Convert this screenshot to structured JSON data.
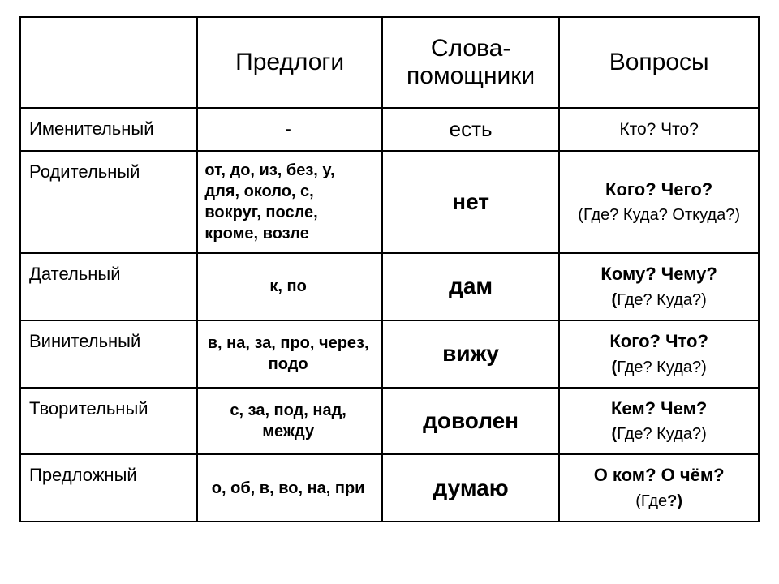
{
  "table": {
    "headers": [
      "",
      "Предлоги",
      "Слова-помощники",
      "Вопросы"
    ],
    "col_widths_pct": [
      24,
      25,
      24,
      27
    ],
    "border_color": "#000000",
    "background_color": "#ffffff",
    "text_color": "#000000",
    "header_fontsize": 30,
    "case_fontsize": 22,
    "prep_fontsize": 20,
    "helper_fontsize": 28,
    "quest_fontsize": 21,
    "rows": [
      {
        "case_name": "Именительный",
        "prepositions": "-",
        "helper": "есть",
        "questions_main": "Кто? Что?",
        "questions_sub": ""
      },
      {
        "case_name": "Родительный",
        "prepositions": "от, до, из, без, у, для, около, с, вокруг, после, кроме, возле",
        "helper": "нет",
        "questions_main": "Кого? Чего?",
        "questions_sub": "(Где? Куда? Откуда?)"
      },
      {
        "case_name": "Дательный",
        "prepositions": "к, по",
        "helper": "дам",
        "questions_main": "Кому? Чему?",
        "questions_sub_inner": "Где? Куда?)"
      },
      {
        "case_name": "Винительный",
        "prepositions": "в, на, за, про, через, подо",
        "helper": "вижу",
        "questions_main": "Кого? Что?",
        "questions_sub_inner": "Где? Куда?)"
      },
      {
        "case_name": "Творительный",
        "prepositions": "с, за, под, над, между",
        "helper": "доволен",
        "questions_main": "Кем? Чем?",
        "questions_sub_inner": "Где? Куда?)"
      },
      {
        "case_name": "Предложный",
        "prepositions": "о, об, в, во, на, при",
        "helper": "думаю",
        "questions_main": "О ком? О чём?",
        "questions_sub_inner_bold": "Где",
        "questions_sub_trail_bold": "?)"
      }
    ]
  }
}
